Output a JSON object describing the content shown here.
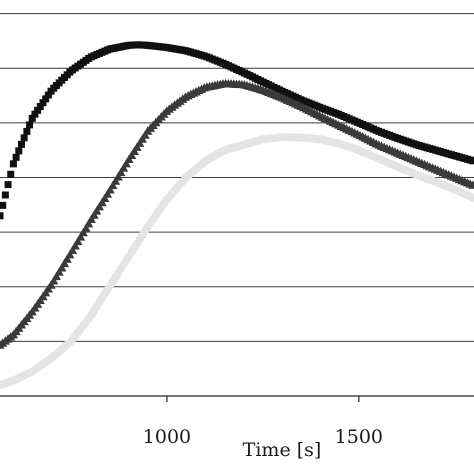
{
  "chart_data": {
    "type": "scatter",
    "title": "",
    "xlabel": "Time [s]",
    "ylabel": "",
    "xlim": [
      565,
      1800
    ],
    "ylim": [
      0,
      7.25
    ],
    "grid": true,
    "x_ticks": [
      {
        "value": 1000,
        "label": "1000"
      },
      {
        "value": 1500,
        "label": "1500"
      }
    ],
    "y_gridlines": [
      1,
      2,
      3,
      4,
      5,
      6,
      7
    ],
    "series": [
      {
        "marker": "square",
        "color": "#111111",
        "x": [
          565,
          600,
          650,
          700,
          750,
          800,
          850,
          900,
          925,
          950,
          1000,
          1050,
          1100,
          1150,
          1200,
          1250,
          1300,
          1350,
          1400,
          1450,
          1500,
          1550,
          1600,
          1650,
          1700,
          1750,
          1800
        ],
        "y": [
          3.3,
          4.25,
          5.1,
          5.6,
          5.95,
          6.2,
          6.35,
          6.42,
          6.43,
          6.42,
          6.38,
          6.32,
          6.22,
          6.08,
          5.92,
          5.75,
          5.58,
          5.42,
          5.28,
          5.15,
          5.0,
          4.85,
          4.72,
          4.6,
          4.5,
          4.4,
          4.3
        ]
      },
      {
        "marker": "triangle",
        "color": "#3a3a3a",
        "x": [
          565,
          600,
          650,
          700,
          750,
          800,
          850,
          900,
          950,
          1000,
          1050,
          1100,
          1150,
          1200,
          1250,
          1300,
          1350,
          1400,
          1450,
          1500,
          1550,
          1600,
          1650,
          1700,
          1750,
          1800
        ],
        "y": [
          0.93,
          1.12,
          1.55,
          2.05,
          2.62,
          3.2,
          3.75,
          4.32,
          4.85,
          5.22,
          5.48,
          5.65,
          5.72,
          5.7,
          5.6,
          5.46,
          5.3,
          5.12,
          4.95,
          4.78,
          4.6,
          4.45,
          4.3,
          4.15,
          4.0,
          3.85
        ]
      },
      {
        "marker": "circle",
        "color": "#e4e4e4",
        "x": [
          565,
          600,
          650,
          700,
          750,
          800,
          850,
          900,
          950,
          1000,
          1050,
          1100,
          1150,
          1200,
          1250,
          1300,
          1350,
          1400,
          1450,
          1500,
          1550,
          1600,
          1650,
          1700,
          1750,
          1800
        ],
        "y": [
          0.2,
          0.28,
          0.45,
          0.7,
          1.0,
          1.45,
          2.0,
          2.55,
          3.1,
          3.6,
          4.0,
          4.3,
          4.5,
          4.6,
          4.7,
          4.74,
          4.73,
          4.7,
          4.62,
          4.5,
          4.35,
          4.2,
          4.05,
          3.92,
          3.78,
          3.62
        ]
      }
    ]
  }
}
